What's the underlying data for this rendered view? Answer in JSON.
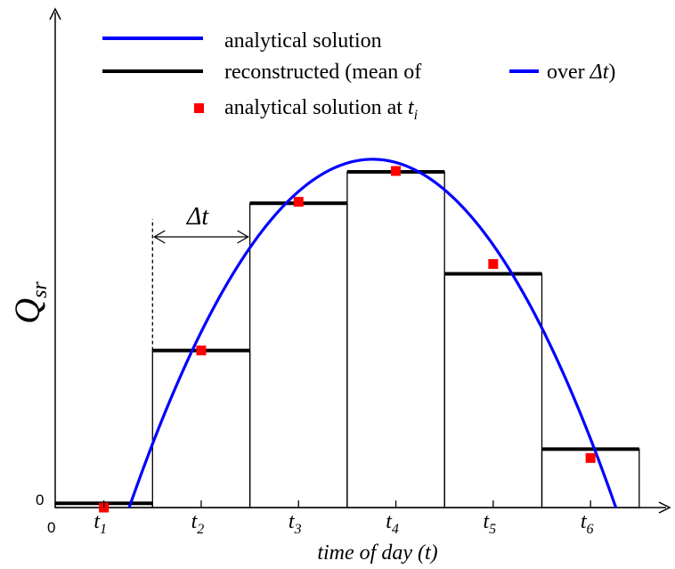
{
  "chart_data": {
    "type": "line",
    "title": "",
    "xlabel": "time of day (t)",
    "ylabel": "Q",
    "ylabel_sub": "sr",
    "x_origin_label": "0",
    "y_origin_label": "0",
    "xlim": [
      0,
      6.5
    ],
    "ylim": [
      0,
      1.1
    ],
    "x_ticks": [
      {
        "value": 0.5,
        "base": "t",
        "sub": "1"
      },
      {
        "value": 1.5,
        "base": "t",
        "sub": "2"
      },
      {
        "value": 2.5,
        "base": "t",
        "sub": "3"
      },
      {
        "value": 3.5,
        "base": "t",
        "sub": "4"
      },
      {
        "value": 4.5,
        "base": "t",
        "sub": "5"
      },
      {
        "value": 5.5,
        "base": "t",
        "sub": "6"
      }
    ],
    "interval_label": "Δt",
    "interval_span": [
      1,
      2
    ],
    "colors": {
      "analytical": "#0000ff",
      "reconstructed": "#000000",
      "points": "#ff0000"
    },
    "analytical_curve": {
      "start": 0.76,
      "end": 5.76,
      "peak_x": 3.26,
      "peak_y": 0.745
    },
    "series": [
      {
        "name": "reconstructed",
        "bins": [
          [
            0,
            1
          ],
          [
            1,
            2
          ],
          [
            2,
            3
          ],
          [
            3,
            4
          ],
          [
            4,
            5
          ],
          [
            5,
            6
          ]
        ],
        "values": [
          0.009,
          0.336,
          0.651,
          0.718,
          0.5,
          0.125
        ]
      },
      {
        "name": "analytical solution at t_i",
        "x": [
          0.5,
          1.5,
          2.5,
          3.5,
          4.5,
          5.5
        ],
        "y": [
          0,
          0.336,
          0.654,
          0.72,
          0.521,
          0.106
        ]
      }
    ],
    "legend": {
      "placement": "top",
      "items": [
        {
          "key": "analytical",
          "text": "analytical solution"
        },
        {
          "key": "reconstructed",
          "text_before": "reconstructed (mean of",
          "text_after": "over",
          "delta": "Δt",
          "close": ")"
        },
        {
          "key": "points",
          "text": "analytical solution at",
          "t": "t",
          "t_sub": "i"
        }
      ]
    }
  }
}
